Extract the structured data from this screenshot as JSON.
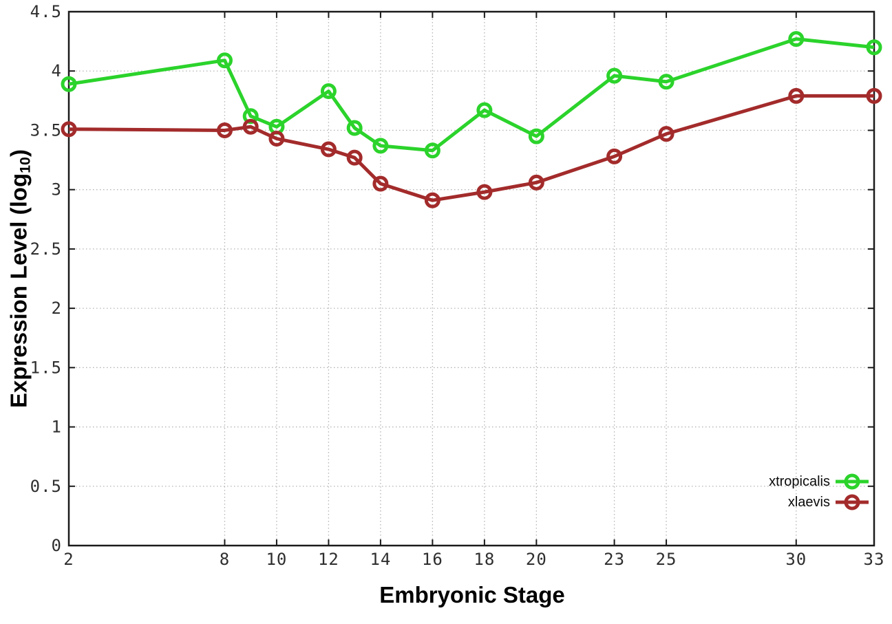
{
  "chart_data": {
    "type": "line",
    "title": "",
    "xlabel": "Embryonic Stage",
    "ylabel": "Expression Level (log10)",
    "ylabel_parts": {
      "prefix": "Expression Level (log",
      "sub": "10",
      "suffix": ")"
    },
    "x": [
      2,
      8,
      9,
      10,
      12,
      13,
      14,
      16,
      18,
      20,
      23,
      25,
      30,
      33
    ],
    "x_tick_labels": [
      "2",
      "8",
      "10",
      "12",
      "14",
      "16",
      "18",
      "20",
      "23",
      "25",
      "30",
      "33"
    ],
    "x_tick_values": [
      2,
      8,
      10,
      12,
      14,
      16,
      18,
      20,
      23,
      25,
      30,
      33
    ],
    "y_tick_labels": [
      "0",
      "0.5",
      "1",
      "1.5",
      "2",
      "2.5",
      "3",
      "3.5",
      "4",
      "4.5"
    ],
    "y_tick_values": [
      0,
      0.5,
      1,
      1.5,
      2,
      2.5,
      3,
      3.5,
      4,
      4.5
    ],
    "xlim": [
      2,
      33
    ],
    "ylim": [
      0,
      4.5
    ],
    "grid": true,
    "marker": "open-circle",
    "legend_position": "inside-bottom-right",
    "series": [
      {
        "name": "xtropicalis",
        "color": "#2bd32b",
        "values": [
          3.89,
          4.09,
          3.62,
          3.53,
          3.83,
          3.52,
          3.37,
          3.33,
          3.67,
          3.45,
          3.96,
          3.91,
          4.27,
          4.2
        ]
      },
      {
        "name": "xlaevis",
        "color": "#a32b2b",
        "values": [
          3.51,
          3.5,
          3.53,
          3.43,
          3.34,
          3.27,
          3.05,
          2.91,
          2.98,
          3.06,
          3.28,
          3.47,
          3.79,
          3.79
        ]
      }
    ]
  },
  "colors": {
    "background": "#ffffff",
    "grid": "#b3b3b3",
    "axis": "#1a1a1a",
    "tick_label": "#2e2e2e"
  }
}
